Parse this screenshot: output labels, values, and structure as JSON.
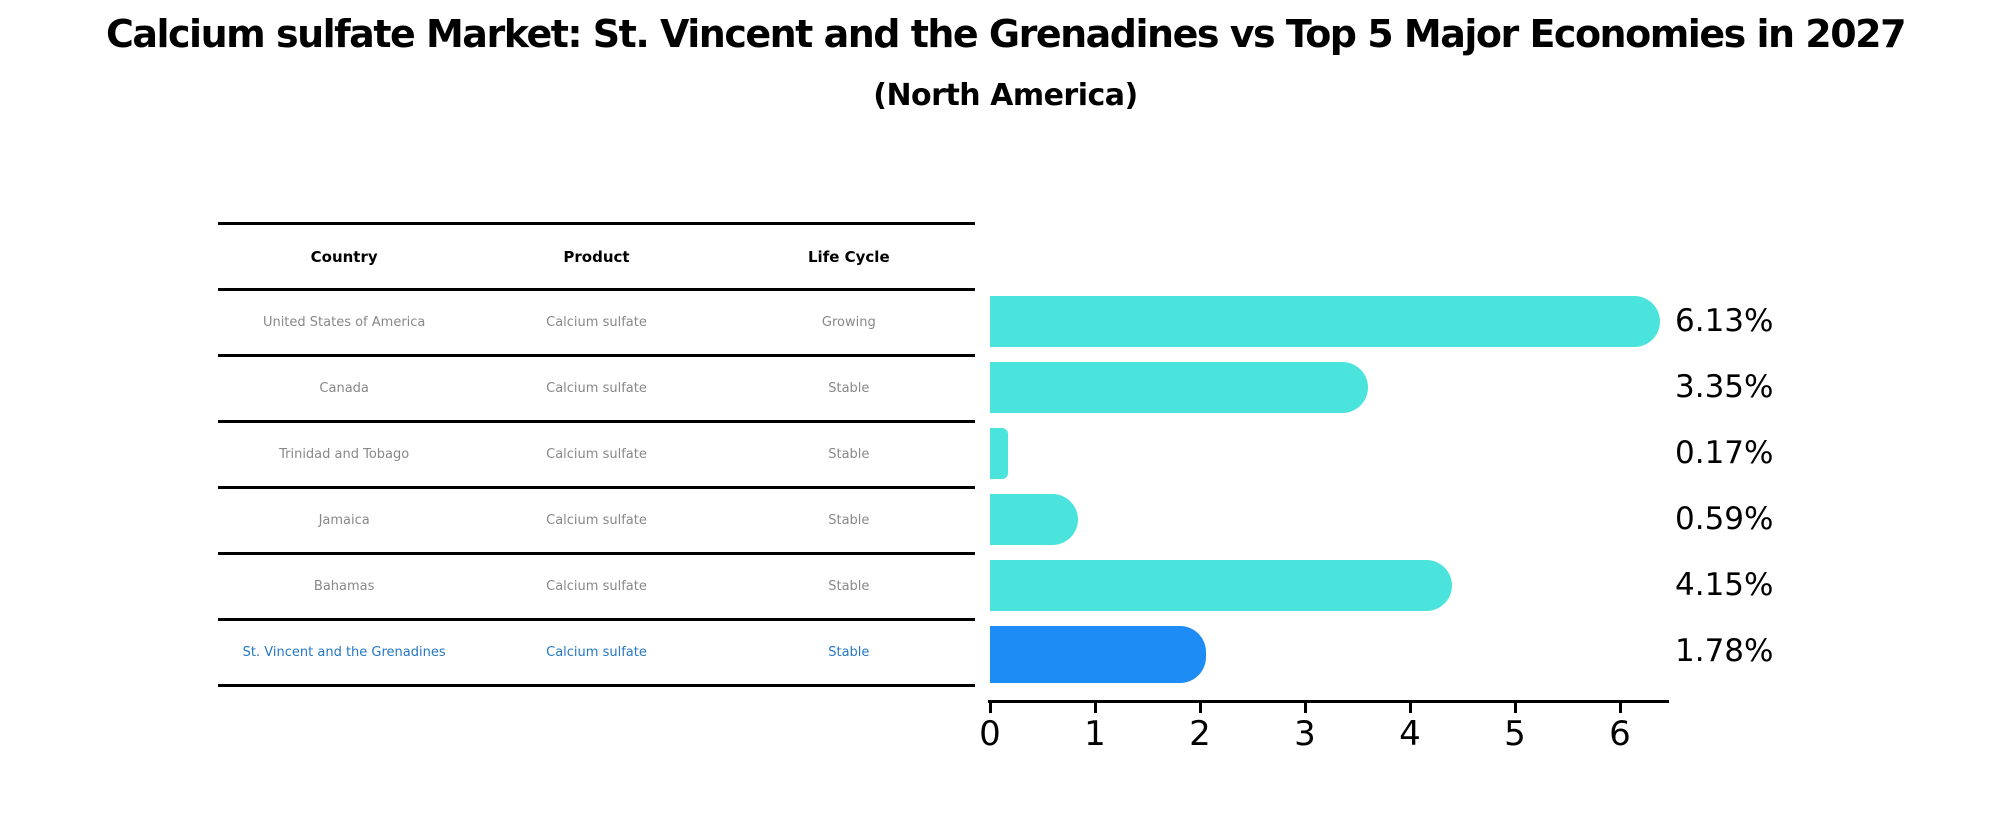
{
  "title": "Calcium sulfate Market: St. Vincent and the Grenadines vs Top 5 Major Economies in 2027",
  "subtitle": "(North America)",
  "table": {
    "columns": [
      "Country",
      "Product",
      "Life Cycle"
    ],
    "rows": [
      {
        "country": "United States of America",
        "product": "Calcium sulfate",
        "life_cycle": "Growing",
        "value_label": "6.13%",
        "highlight": false
      },
      {
        "country": "Canada",
        "product": "Calcium sulfate",
        "life_cycle": "Stable",
        "value_label": "3.35%",
        "highlight": false
      },
      {
        "country": "Trinidad and Tobago",
        "product": "Calcium sulfate",
        "life_cycle": "Stable",
        "value_label": "0.17%",
        "highlight": false
      },
      {
        "country": "Jamaica",
        "product": "Calcium sulfate",
        "life_cycle": "Stable",
        "value_label": "0.59%",
        "highlight": false
      },
      {
        "country": "Bahamas",
        "product": "Calcium sulfate",
        "life_cycle": "Stable",
        "value_label": "4.15%",
        "highlight": false
      },
      {
        "country": "St. Vincent and the Grenadines",
        "product": "Calcium sulfate",
        "life_cycle": "Stable",
        "value_label": "1.78%",
        "highlight": true
      }
    ]
  },
  "chart_data": {
    "type": "bar",
    "orientation": "horizontal",
    "title": "Calcium sulfate Market: St. Vincent and the Grenadines vs Top 5 Major Economies in 2027",
    "subtitle": "(North America)",
    "categories": [
      "United States of America",
      "Canada",
      "Trinidad and Tobago",
      "Jamaica",
      "Bahamas",
      "St. Vincent and the Grenadines"
    ],
    "values": [
      6.13,
      3.35,
      0.17,
      0.59,
      4.15,
      1.78
    ],
    "value_labels": [
      "6.13%",
      "3.35%",
      "0.17%",
      "0.59%",
      "4.15%",
      "1.78%"
    ],
    "xlabel": "",
    "ylabel": "",
    "xlim": [
      0,
      6.5
    ],
    "xticks": [
      0,
      1,
      2,
      3,
      4,
      5,
      6
    ],
    "grid": false,
    "legend": false,
    "highlight_index": 5,
    "bar_color": "#4BE4DC",
    "highlight_bar_color": "#1E8CF5"
  },
  "colors": {
    "bar": "#4BE4DC",
    "highlight_bar": "#1E8CF5",
    "highlight_text": "#2478C4",
    "row_text": "#888888",
    "header_text": "#000000",
    "axis": "#000000"
  }
}
